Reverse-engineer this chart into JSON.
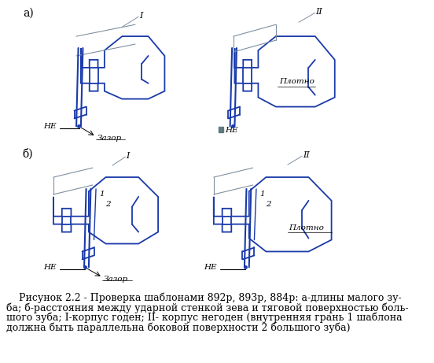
{
  "blue": "#1a3aaa",
  "gray": "#8090a0",
  "black": "#000000",
  "bg": "#ffffff",
  "sq_color": "#607880",
  "label_a": "а)",
  "label_b": "б)",
  "caption1": "    Рисунок 2.2 - Проверка шаблонами 892р, 893р, 884р: а-длины малого зу-",
  "caption2": "ба; б-расстояния между ударной стенкой зева и тяговой поверхностью боль-",
  "caption3": "шого зуба; I-корпус годен; II- корпус негоден (внутренняя грань 1 шаблона",
  "caption4": "должна быть параллельна боковой поверхности 2 большого зуба)"
}
